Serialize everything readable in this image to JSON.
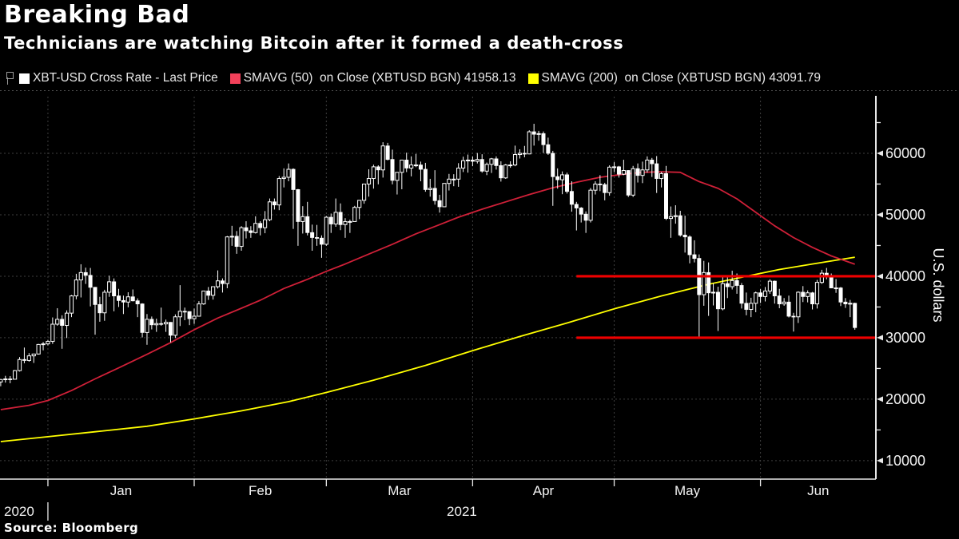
{
  "header": {
    "title": "Breaking Bad",
    "subtitle": "Technicians are watching Bitcoin after it formed a death-cross"
  },
  "source": "Source:  Bloomberg",
  "legend": {
    "items": [
      {
        "swatch": "#ffffff",
        "label": "XBT-USD Cross Rate - Last Price"
      },
      {
        "swatch": "#f3415a",
        "label": "SMAVG (50)  on Close (XBTUSD BGN) 41958.13"
      },
      {
        "swatch": "#ffff00",
        "label": "SMAVG (200)  on Close (XBTUSD BGN) 43091.79"
      }
    ]
  },
  "chart_data": {
    "type": "candlestick",
    "title": "XBT-USD Cross Rate with 50 and 200 day moving averages",
    "ylabel": "U.S. dollars",
    "ylim": [
      7000,
      70000
    ],
    "y_ticks": [
      10000,
      20000,
      30000,
      40000,
      50000,
      60000
    ],
    "y_minor_ticks": [
      15000,
      25000,
      35000,
      45000,
      55000,
      65000
    ],
    "grid": true,
    "x_axis": {
      "month_tick_days": [
        10,
        41,
        69,
        100,
        130,
        161
      ],
      "month_labels": [
        "Jan",
        "Feb",
        "Mar",
        "Apr",
        "May",
        "Jun"
      ],
      "year_left_label": "2020",
      "year_center_label": "2021",
      "year_divider_day": 10
    },
    "colors": {
      "candle": "#ffffff",
      "sma50": "#cf2038",
      "sma200": "#ffff00",
      "support": "#ee0000",
      "grid": "#3e3e3e",
      "axis": "#e8e8e8",
      "label": "#f2f2f2"
    },
    "support_lines": [
      {
        "value": 40000,
        "from_day": 122,
        "to_axis": true
      },
      {
        "value": 30000,
        "from_day": 122,
        "to_axis": true
      }
    ],
    "sma50": {
      "name": "SMAVG (50) on Close (XBTUSD BGN)",
      "last_value": 41958.13,
      "points": [
        [
          0,
          18300
        ],
        [
          6,
          19000
        ],
        [
          10,
          19800
        ],
        [
          15,
          21400
        ],
        [
          20,
          23300
        ],
        [
          25,
          25100
        ],
        [
          31,
          27300
        ],
        [
          36,
          29200
        ],
        [
          41,
          31300
        ],
        [
          46,
          33200
        ],
        [
          51,
          34800
        ],
        [
          55,
          36100
        ],
        [
          60,
          38000
        ],
        [
          65,
          39500
        ],
        [
          69,
          40800
        ],
        [
          73,
          42000
        ],
        [
          78,
          43600
        ],
        [
          83,
          45200
        ],
        [
          88,
          46900
        ],
        [
          93,
          48400
        ],
        [
          97,
          49600
        ],
        [
          102,
          50900
        ],
        [
          107,
          52100
        ],
        [
          112,
          53300
        ],
        [
          117,
          54400
        ],
        [
          122,
          55300
        ],
        [
          127,
          56100
        ],
        [
          132,
          56600
        ],
        [
          136,
          56900
        ],
        [
          140,
          57000
        ],
        [
          144,
          56900
        ],
        [
          148,
          55400
        ],
        [
          152,
          54300
        ],
        [
          156,
          52600
        ],
        [
          160,
          50400
        ],
        [
          164,
          48200
        ],
        [
          168,
          46300
        ],
        [
          172,
          44700
        ],
        [
          176,
          43300
        ],
        [
          181,
          41958
        ]
      ]
    },
    "sma200": {
      "name": "SMAVG (200) on Close (XBTUSD BGN)",
      "last_value": 43091.79,
      "points": [
        [
          0,
          13100
        ],
        [
          10,
          13900
        ],
        [
          20,
          14700
        ],
        [
          31,
          15600
        ],
        [
          41,
          16800
        ],
        [
          51,
          18100
        ],
        [
          61,
          19600
        ],
        [
          69,
          21100
        ],
        [
          79,
          23100
        ],
        [
          90,
          25500
        ],
        [
          100,
          27900
        ],
        [
          110,
          30200
        ],
        [
          120,
          32400
        ],
        [
          130,
          34700
        ],
        [
          140,
          36800
        ],
        [
          150,
          38700
        ],
        [
          158,
          40000
        ],
        [
          165,
          41100
        ],
        [
          172,
          42000
        ],
        [
          177,
          42600
        ],
        [
          181,
          43092
        ]
      ]
    },
    "ohlc": [
      [
        22800,
        23300,
        22100,
        23200
      ],
      [
        23200,
        23800,
        22700,
        23300
      ],
      [
        23300,
        23750,
        22600,
        23250
      ],
      [
        23250,
        24750,
        23200,
        24650
      ],
      [
        24650,
        26850,
        24500,
        26450
      ],
      [
        26450,
        28400,
        25850,
        26300
      ],
      [
        26300,
        27500,
        26100,
        27050
      ],
      [
        27050,
        27400,
        25900,
        27350
      ],
      [
        27350,
        29000,
        27250,
        28900
      ],
      [
        28900,
        29300,
        27950,
        29000
      ],
      [
        29000,
        29650,
        28750,
        29400
      ],
      [
        29400,
        33300,
        29000,
        32200
      ],
      [
        32200,
        34800,
        31950,
        33000
      ],
      [
        33000,
        33650,
        28200,
        32000
      ],
      [
        32000,
        34450,
        29950,
        34000
      ],
      [
        34000,
        36950,
        33350,
        36800
      ],
      [
        36800,
        40400,
        36250,
        39400
      ],
      [
        39400,
        41950,
        36550,
        40600
      ],
      [
        40600,
        41400,
        38750,
        40150
      ],
      [
        40150,
        41350,
        35100,
        38200
      ],
      [
        38200,
        38250,
        30500,
        35400
      ],
      [
        35400,
        36650,
        32600,
        34050
      ],
      [
        34050,
        37800,
        32750,
        37400
      ],
      [
        37400,
        40100,
        36650,
        39100
      ],
      [
        39100,
        39650,
        34300,
        36800
      ],
      [
        36800,
        37950,
        35000,
        36050
      ],
      [
        36050,
        36850,
        33850,
        35800
      ],
      [
        35800,
        37400,
        34950,
        36650
      ],
      [
        36650,
        37850,
        35900,
        36000
      ],
      [
        36000,
        36400,
        33350,
        35500
      ],
      [
        35500,
        35600,
        30050,
        30850
      ],
      [
        30850,
        33850,
        28850,
        33000
      ],
      [
        33000,
        33450,
        31350,
        32100
      ],
      [
        32100,
        33100,
        30950,
        32300
      ],
      [
        32300,
        34900,
        31950,
        32250
      ],
      [
        32250,
        32950,
        30950,
        32500
      ],
      [
        32500,
        32550,
        29250,
        30400
      ],
      [
        30400,
        33800,
        29950,
        33400
      ],
      [
        33400,
        38550,
        31900,
        34300
      ],
      [
        34300,
        34900,
        32850,
        34250
      ],
      [
        34250,
        34300,
        32050,
        33100
      ],
      [
        33100,
        34750,
        32250,
        33500
      ],
      [
        33500,
        35950,
        33450,
        35500
      ],
      [
        35500,
        37650,
        35350,
        37600
      ],
      [
        37600,
        38250,
        36150,
        36900
      ],
      [
        36900,
        38350,
        36200,
        38300
      ],
      [
        38300,
        40950,
        38000,
        39250
      ],
      [
        39250,
        39650,
        37350,
        38800
      ],
      [
        38800,
        46550,
        38050,
        46400
      ],
      [
        46400,
        48200,
        44950,
        46500
      ],
      [
        46500,
        47350,
        43650,
        44850
      ],
      [
        44850,
        48150,
        44150,
        47900
      ],
      [
        47900,
        48950,
        46150,
        47400
      ],
      [
        47400,
        48150,
        46250,
        47100
      ],
      [
        47100,
        49750,
        46950,
        48600
      ],
      [
        48600,
        48950,
        46650,
        47900
      ],
      [
        47900,
        50600,
        47000,
        49200
      ],
      [
        49200,
        52650,
        48950,
        52100
      ],
      [
        52100,
        52650,
        50850,
        51600
      ],
      [
        51600,
        56300,
        50750,
        55900
      ],
      [
        55900,
        57550,
        54450,
        56100
      ],
      [
        56100,
        58350,
        55450,
        57400
      ],
      [
        57400,
        57550,
        47700,
        54100
      ],
      [
        54100,
        54200,
        44950,
        48900
      ],
      [
        48900,
        51400,
        46950,
        49700
      ],
      [
        49700,
        52100,
        46650,
        47100
      ],
      [
        47100,
        48400,
        44150,
        46300
      ],
      [
        46300,
        48350,
        44950,
        46200
      ],
      [
        46200,
        46650,
        43000,
        45200
      ],
      [
        45200,
        49800,
        44950,
        49600
      ],
      [
        49600,
        50200,
        47050,
        48500
      ],
      [
        48500,
        52650,
        48050,
        50400
      ],
      [
        50400,
        51850,
        47500,
        48400
      ],
      [
        48400,
        49450,
        46250,
        48900
      ],
      [
        48900,
        49200,
        47050,
        48900
      ],
      [
        48900,
        51450,
        48900,
        51200
      ],
      [
        51200,
        52400,
        49300,
        52350
      ],
      [
        52350,
        55050,
        51800,
        55000
      ],
      [
        55000,
        57400,
        52950,
        55900
      ],
      [
        55900,
        58150,
        54250,
        57800
      ],
      [
        57800,
        58050,
        54950,
        57300
      ],
      [
        57300,
        61800,
        56050,
        61200
      ],
      [
        61200,
        61700,
        58850,
        59000
      ],
      [
        59000,
        60600,
        54950,
        55600
      ],
      [
        55600,
        56950,
        53300,
        56900
      ],
      [
        56900,
        58950,
        54150,
        58900
      ],
      [
        58900,
        60100,
        56950,
        57600
      ],
      [
        57600,
        59500,
        56250,
        58100
      ],
      [
        58100,
        59900,
        57750,
        58100
      ],
      [
        58100,
        58650,
        55450,
        57400
      ],
      [
        57400,
        58450,
        53750,
        54100
      ],
      [
        54100,
        55850,
        52950,
        54300
      ],
      [
        54300,
        57250,
        51650,
        52300
      ],
      [
        52300,
        53250,
        50350,
        51300
      ],
      [
        51300,
        55150,
        51300,
        55100
      ],
      [
        55100,
        56650,
        53950,
        55800
      ],
      [
        55800,
        56600,
        54650,
        55800
      ],
      [
        55800,
        58400,
        54550,
        57600
      ],
      [
        57600,
        59450,
        56950,
        58800
      ],
      [
        58800,
        59800,
        56850,
        58900
      ],
      [
        58900,
        59500,
        57900,
        58700
      ],
      [
        58700,
        60050,
        58350,
        59000
      ],
      [
        59000,
        59850,
        56850,
        57100
      ],
      [
        57100,
        58500,
        56450,
        58200
      ],
      [
        58200,
        59250,
        56800,
        59100
      ],
      [
        59100,
        59500,
        57350,
        58000
      ],
      [
        58000,
        58700,
        55400,
        56000
      ],
      [
        56000,
        58250,
        55850,
        58100
      ],
      [
        58100,
        58700,
        57650,
        58100
      ],
      [
        58100,
        61250,
        57900,
        59800
      ],
      [
        59800,
        60650,
        59150,
        60000
      ],
      [
        60000,
        61200,
        59350,
        59900
      ],
      [
        59900,
        63750,
        59850,
        63500
      ],
      [
        63500,
        64800,
        61250,
        63100
      ],
      [
        63100,
        63650,
        62050,
        63200
      ],
      [
        63200,
        63550,
        60050,
        61400
      ],
      [
        61400,
        62550,
        59750,
        60000
      ],
      [
        60000,
        60400,
        51450,
        56200
      ],
      [
        56200,
        57550,
        54250,
        55700
      ],
      [
        55700,
        57050,
        53350,
        56500
      ],
      [
        56500,
        56850,
        53450,
        53800
      ],
      [
        53800,
        55450,
        50500,
        51700
      ],
      [
        51700,
        52100,
        47450,
        51100
      ],
      [
        51100,
        51250,
        48750,
        50100
      ],
      [
        50100,
        50550,
        47050,
        49100
      ],
      [
        49100,
        54350,
        48750,
        54000
      ],
      [
        54000,
        55450,
        53300,
        55000
      ],
      [
        55000,
        56450,
        53850,
        54900
      ],
      [
        54900,
        55200,
        52350,
        53600
      ],
      [
        53600,
        58050,
        53100,
        57750
      ],
      [
        57750,
        58550,
        56950,
        57800
      ],
      [
        57800,
        57950,
        56050,
        56600
      ],
      [
        56600,
        58950,
        56450,
        57200
      ],
      [
        57200,
        57250,
        52900,
        53200
      ],
      [
        53200,
        57950,
        52900,
        57500
      ],
      [
        57500,
        58350,
        55250,
        56400
      ],
      [
        56400,
        58650,
        55150,
        57300
      ],
      [
        57300,
        59500,
        56850,
        58900
      ],
      [
        58900,
        59250,
        56150,
        58300
      ],
      [
        58300,
        59550,
        53550,
        55900
      ],
      [
        55900,
        56950,
        54450,
        56700
      ],
      [
        56700,
        57950,
        49150,
        49400
      ],
      [
        49400,
        51350,
        46250,
        49700
      ],
      [
        49700,
        51550,
        48550,
        49850
      ],
      [
        49850,
        50650,
        46450,
        46700
      ],
      [
        46700,
        49850,
        43850,
        46400
      ],
      [
        46400,
        46650,
        42100,
        43500
      ],
      [
        43500,
        45850,
        42250,
        42900
      ],
      [
        42900,
        43550,
        30000,
        37000
      ],
      [
        37000,
        42500,
        35200,
        40600
      ],
      [
        40600,
        42250,
        33550,
        37300
      ],
      [
        37300,
        38850,
        35250,
        37400
      ],
      [
        37400,
        38300,
        31100,
        34700
      ],
      [
        34700,
        39950,
        34450,
        38800
      ],
      [
        38800,
        39850,
        36450,
        38300
      ],
      [
        38300,
        40900,
        37850,
        39300
      ],
      [
        39300,
        40450,
        37150,
        38500
      ],
      [
        38500,
        38900,
        34750,
        35600
      ],
      [
        35600,
        37350,
        33650,
        34600
      ],
      [
        34600,
        36500,
        33350,
        35600
      ],
      [
        35600,
        37500,
        34150,
        37300
      ],
      [
        37300,
        37900,
        35650,
        36700
      ],
      [
        36700,
        38250,
        35900,
        37600
      ],
      [
        37600,
        39500,
        37150,
        39200
      ],
      [
        39200,
        39300,
        35550,
        36800
      ],
      [
        36800,
        37950,
        34800,
        35500
      ],
      [
        35500,
        36450,
        35200,
        35800
      ],
      [
        35800,
        36850,
        33300,
        33500
      ],
      [
        33500,
        34050,
        31000,
        33400
      ],
      [
        33400,
        37550,
        32400,
        37400
      ],
      [
        37400,
        38400,
        35800,
        36700
      ],
      [
        36700,
        37700,
        35750,
        37300
      ],
      [
        37300,
        37450,
        34600,
        35500
      ],
      [
        35500,
        39400,
        34750,
        39000
      ],
      [
        39000,
        41050,
        38750,
        40500
      ],
      [
        40500,
        41350,
        39500,
        40100
      ],
      [
        40100,
        40450,
        38050,
        38100
      ],
      [
        38100,
        39550,
        37300,
        38100
      ],
      [
        38100,
        38250,
        35150,
        35800
      ],
      [
        35800,
        36450,
        34850,
        35500
      ],
      [
        35500,
        36150,
        33350,
        35600
      ],
      [
        35600,
        35700,
        31300,
        31650
      ]
    ]
  }
}
